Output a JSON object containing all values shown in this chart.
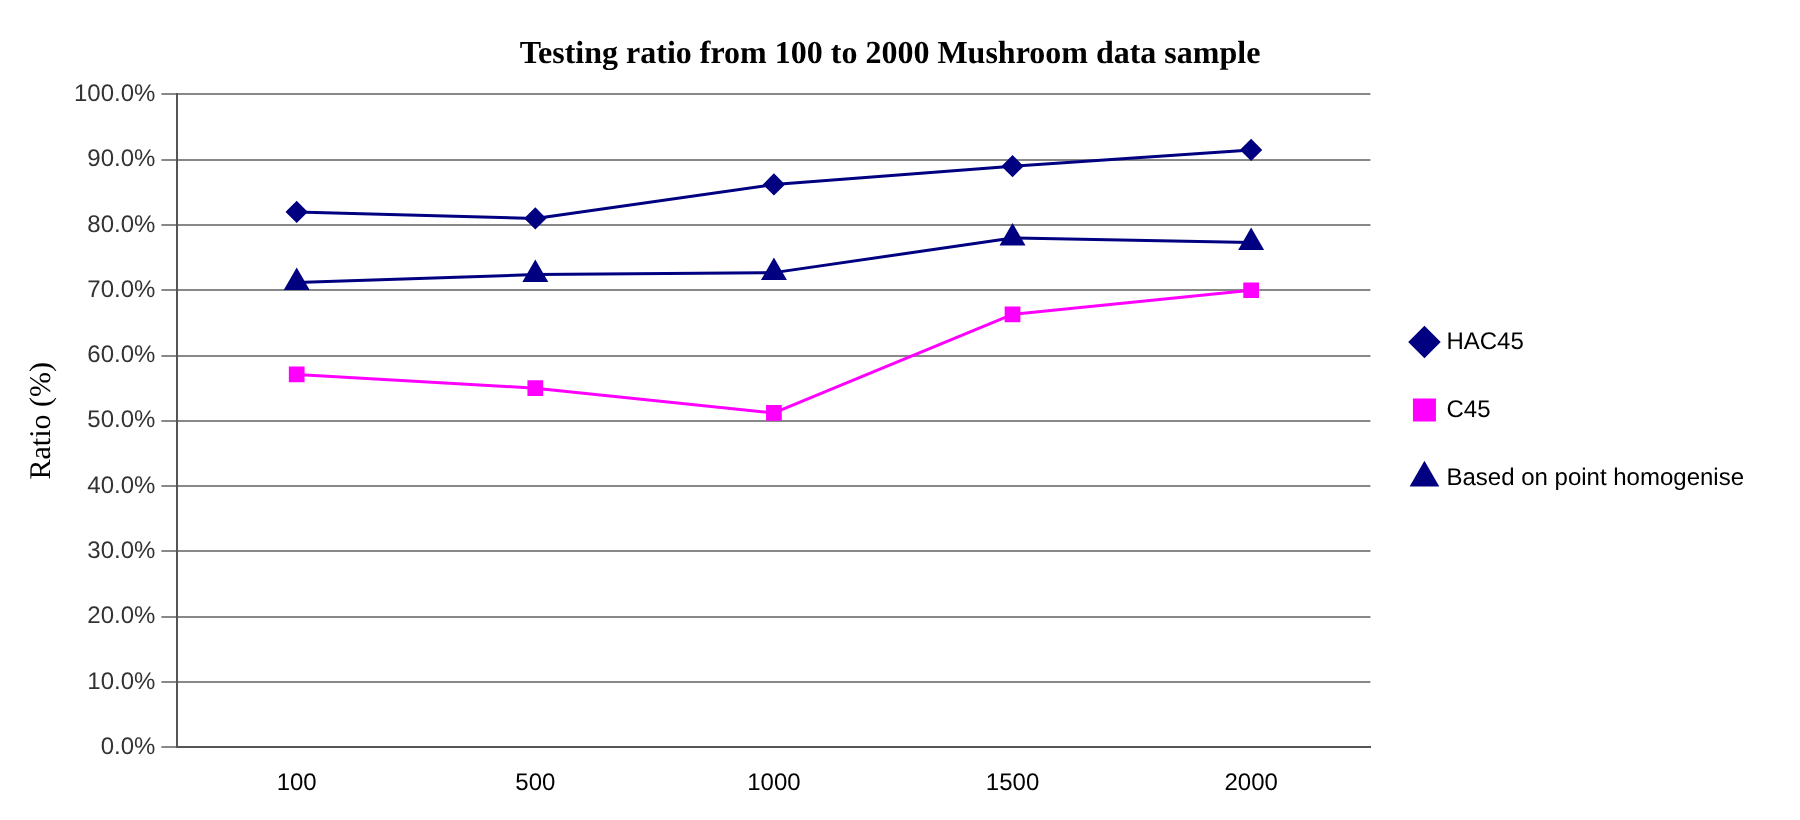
{
  "chart_data": {
    "type": "line",
    "title": "Testing ratio from 100 to 2000 Mushroom data sample",
    "ylabel": "Ratio (%)",
    "categories": [
      "100",
      "500",
      "1000",
      "1500",
      "2000"
    ],
    "series": [
      {
        "name": "HAC45",
        "color": "#000080",
        "marker": "diamond",
        "values": [
          82.0,
          81.0,
          86.2,
          89.0,
          91.5
        ]
      },
      {
        "name": "C45",
        "color": "#ff00ff",
        "marker": "square",
        "values": [
          57.1,
          55.0,
          51.2,
          66.3,
          70.0
        ]
      },
      {
        "name": "Based on point homogenise",
        "color": "#000080",
        "marker": "triangle",
        "values": [
          71.2,
          72.4,
          72.7,
          78.0,
          77.3
        ]
      }
    ],
    "ylim": [
      0,
      100
    ],
    "yticks": [
      {
        "value": 0,
        "label": "0.0%"
      },
      {
        "value": 10,
        "label": "10.0%"
      },
      {
        "value": 20,
        "label": "20.0%"
      },
      {
        "value": 30,
        "label": "30.0%"
      },
      {
        "value": 40,
        "label": "40.0%"
      },
      {
        "value": 50,
        "label": "50.0%"
      },
      {
        "value": 60,
        "label": "60.0%"
      },
      {
        "value": 70,
        "label": "70.0%"
      },
      {
        "value": 80,
        "label": "80.0%"
      },
      {
        "value": 90,
        "label": "90.0%"
      },
      {
        "value": 100,
        "label": "100.0%"
      }
    ],
    "grid": "y",
    "legend": "right"
  }
}
